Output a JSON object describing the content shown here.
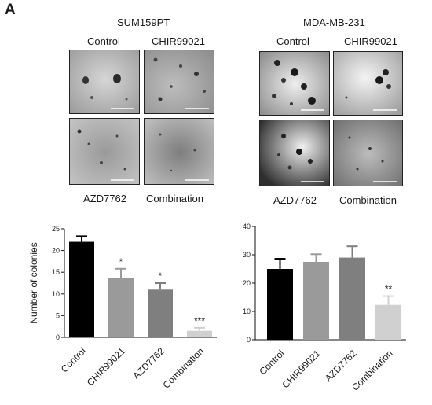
{
  "panel_letter": "A",
  "micrographs": {
    "left_title": "SUM159PT",
    "right_title": "MDA-MB-231",
    "labels": [
      "Control",
      "CHIR99021",
      "AZD7762",
      "Combination"
    ]
  },
  "chart_data": [
    {
      "type": "bar",
      "categories": [
        "Control",
        "CHIR99021",
        "AZD7762",
        "Combination"
      ],
      "values": [
        22,
        13.7,
        11,
        1.5
      ],
      "errors": [
        1.3,
        2.1,
        1.5,
        0.7
      ],
      "significance": [
        "",
        "*",
        "*",
        "***"
      ],
      "colors": [
        "#000000",
        "#9a9a9a",
        "#7f7f7f",
        "#d0d0d0"
      ],
      "ylabel": "Number of colonies",
      "ylim": [
        0,
        25
      ],
      "yticks": [
        0,
        5,
        10,
        15,
        20,
        25
      ],
      "title": "",
      "xlabel": ""
    },
    {
      "type": "bar",
      "categories": [
        "Control",
        "CHIR99021",
        "AZD7762",
        "Combination"
      ],
      "values": [
        25,
        27.5,
        29,
        12.3
      ],
      "errors": [
        3.6,
        2.7,
        4,
        3.1
      ],
      "significance": [
        "",
        "",
        "",
        "**"
      ],
      "colors": [
        "#000000",
        "#9a9a9a",
        "#7f7f7f",
        "#d0d0d0"
      ],
      "ylabel": "",
      "ylim": [
        0,
        40
      ],
      "yticks": [
        0,
        10,
        20,
        30,
        40
      ],
      "title": "",
      "xlabel": ""
    }
  ]
}
